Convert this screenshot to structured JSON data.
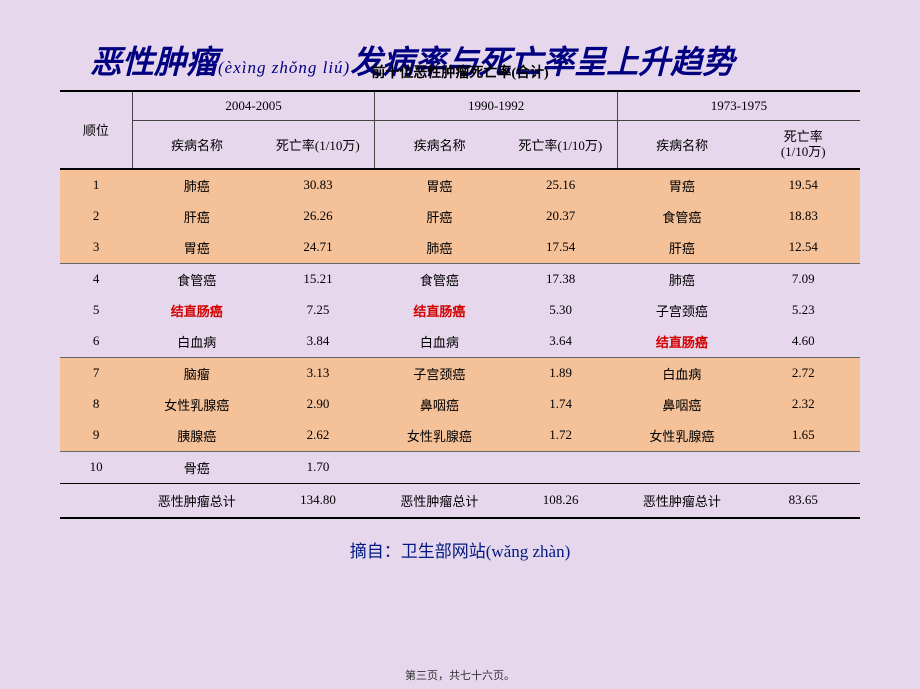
{
  "title": {
    "part1": "恶性肿瘤",
    "pinyin": "(èxìng zhǒng liú)",
    "part2": "发病率与死亡率呈上升趋势"
  },
  "subtitle": "前十位恶性肿瘤死亡率(合计)",
  "header": {
    "rank": "顺位",
    "periods": [
      "2004-2005",
      "1990-1992",
      "1973-1975"
    ],
    "disease": "疾病名称",
    "rate": "死亡率(1/10万)",
    "rate_wrapped": "死亡率\n(1/10万)"
  },
  "highlight_name": "结直肠癌",
  "highlight_color": "#d40000",
  "band_color": "#f4c199",
  "highlight_bands": [
    [
      1,
      3
    ],
    [
      7,
      9
    ]
  ],
  "rows": [
    {
      "rank": "1",
      "d1": "肺癌",
      "r1": "30.83",
      "d2": "胃癌",
      "r2": "25.16",
      "d3": "胃癌",
      "r3": "19.54"
    },
    {
      "rank": "2",
      "d1": "肝癌",
      "r1": "26.26",
      "d2": "肝癌",
      "r2": "20.37",
      "d3": "食管癌",
      "r3": "18.83"
    },
    {
      "rank": "3",
      "d1": "胃癌",
      "r1": "24.71",
      "d2": "肺癌",
      "r2": "17.54",
      "d3": "肝癌",
      "r3": "12.54"
    },
    {
      "rank": "4",
      "d1": "食管癌",
      "r1": "15.21",
      "d2": "食管癌",
      "r2": "17.38",
      "d3": "肺癌",
      "r3": "7.09"
    },
    {
      "rank": "5",
      "d1": "结直肠癌",
      "r1": "7.25",
      "d2": "结直肠癌",
      "r2": "5.30",
      "d3": "子宫颈癌",
      "r3": "5.23"
    },
    {
      "rank": "6",
      "d1": "白血病",
      "r1": "3.84",
      "d2": "白血病",
      "r2": "3.64",
      "d3": "结直肠癌",
      "r3": "4.60"
    },
    {
      "rank": "7",
      "d1": "脑瘤",
      "r1": "3.13",
      "d2": "子宫颈癌",
      "r2": "1.89",
      "d3": "白血病",
      "r3": "2.72"
    },
    {
      "rank": "8",
      "d1": "女性乳腺癌",
      "r1": "2.90",
      "d2": "鼻咽癌",
      "r2": "1.74",
      "d3": "鼻咽癌",
      "r3": "2.32"
    },
    {
      "rank": "9",
      "d1": "胰腺癌",
      "r1": "2.62",
      "d2": "女性乳腺癌",
      "r2": "1.72",
      "d3": "女性乳腺癌",
      "r3": "1.65"
    },
    {
      "rank": "10",
      "d1": "骨癌",
      "r1": "1.70",
      "d2": "",
      "r2": "",
      "d3": "",
      "r3": ""
    }
  ],
  "total": {
    "label": "恶性肿瘤总计",
    "r1": "134.80",
    "r2": "108.26",
    "r3": "83.65"
  },
  "source": {
    "prefix": "摘自：",
    "name": "卫生部网站",
    "pinyin": "(wǎng zhàn)"
  },
  "footer": "第三页，共七十六页。"
}
